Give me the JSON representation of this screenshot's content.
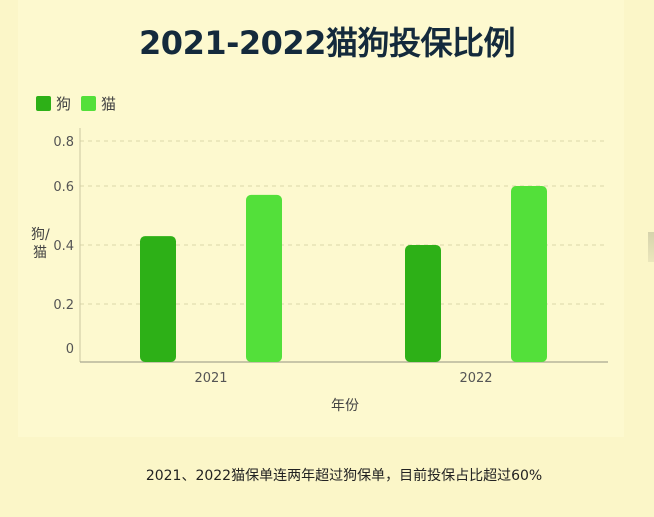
{
  "chart_data": {
    "type": "bar",
    "title": "2021-2022猫狗投保比例",
    "categories": [
      "2021",
      "2022"
    ],
    "series": [
      {
        "name": "狗",
        "values": [
          0.43,
          0.4
        ],
        "color": "#2db017"
      },
      {
        "name": "猫",
        "values": [
          0.57,
          0.6
        ],
        "color": "#53e03a"
      }
    ],
    "xlabel": "年份",
    "ylabel": "狗/猫",
    "yticks": [
      "0",
      "0.2",
      "0.4",
      "0.6",
      "0.8"
    ],
    "ylim": [
      0,
      0.8
    ],
    "grid": true,
    "legend": "top-left"
  },
  "caption": "2021、2022猫保单连两年超过狗保单，目前投保占比超过60%"
}
